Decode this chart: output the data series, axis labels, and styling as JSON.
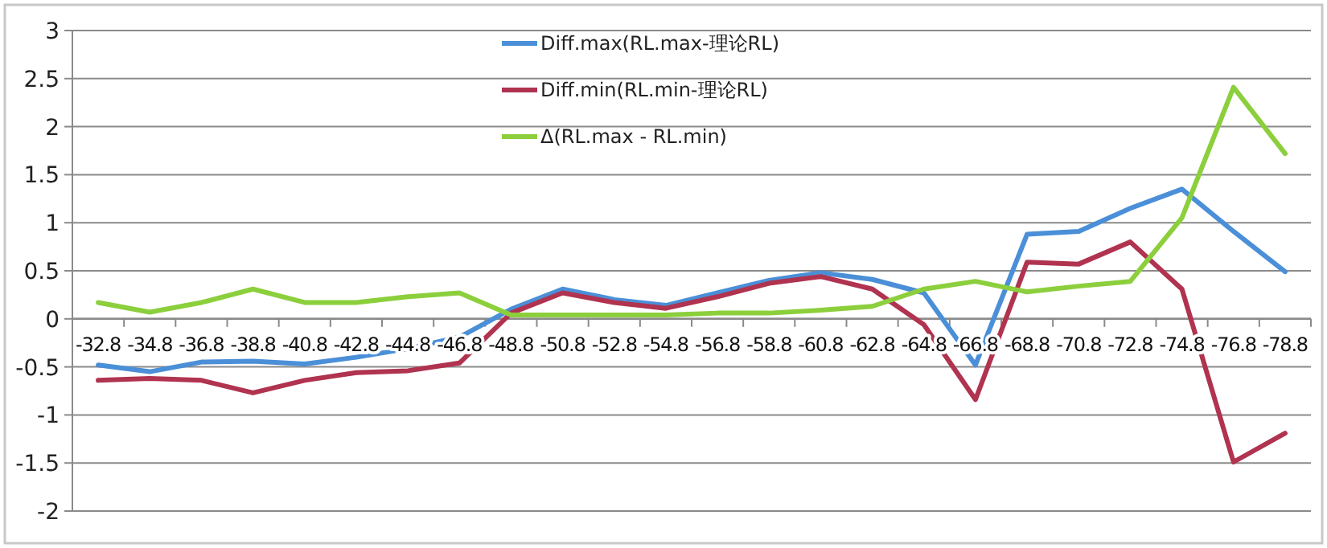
{
  "chart_data": {
    "type": "line",
    "categories": [
      "-32.8",
      "-34.8",
      "-36.8",
      "-38.8",
      "-40.8",
      "-42.8",
      "-44.8",
      "-46.8",
      "-48.8",
      "-50.8",
      "-52.8",
      "-54.8",
      "-56.8",
      "-58.8",
      "-60.8",
      "-62.8",
      "-64.8",
      "-66.8",
      "-68.8",
      "-70.8",
      "-72.8",
      "-74.8",
      "-76.8",
      "-78.8"
    ],
    "series": [
      {
        "name": "Diff.max(RL.max-理论RL)",
        "color": "#4a8fd8",
        "values": [
          -0.48,
          -0.55,
          -0.45,
          -0.44,
          -0.47,
          -0.4,
          -0.31,
          -0.19,
          0.1,
          0.31,
          0.2,
          0.14,
          0.27,
          0.4,
          0.48,
          0.41,
          0.27,
          -0.48,
          0.88,
          0.91,
          1.15,
          1.35,
          0.91,
          0.49
        ]
      },
      {
        "name": "Diff.min(RL.min-理论RL)",
        "color": "#b0334f",
        "values": [
          -0.64,
          -0.62,
          -0.64,
          -0.77,
          -0.64,
          -0.56,
          -0.54,
          -0.46,
          0.06,
          0.27,
          0.17,
          0.11,
          0.23,
          0.37,
          0.44,
          0.31,
          -0.06,
          -0.84,
          0.59,
          0.57,
          0.8,
          0.31,
          -1.49,
          -1.19
        ]
      },
      {
        "name": "Δ(RL.max - RL.min)",
        "color": "#8ccf3c",
        "values": [
          0.17,
          0.07,
          0.17,
          0.31,
          0.17,
          0.17,
          0.23,
          0.27,
          0.04,
          0.04,
          0.04,
          0.04,
          0.06,
          0.06,
          0.09,
          0.13,
          0.31,
          0.39,
          0.28,
          0.34,
          0.39,
          1.05,
          2.41,
          1.72
        ]
      }
    ],
    "ylim": [
      -2,
      3
    ],
    "yticks": [
      {
        "value": -2,
        "label": "-2"
      },
      {
        "value": -1.5,
        "label": "-1.5"
      },
      {
        "value": -1,
        "label": "-1"
      },
      {
        "value": -0.5,
        "label": "-0.5"
      },
      0,
      0.5,
      1,
      1.5,
      2,
      2.5,
      3
    ],
    "grid": "y",
    "legend": "top",
    "marker": "none",
    "line_style": "solid"
  }
}
